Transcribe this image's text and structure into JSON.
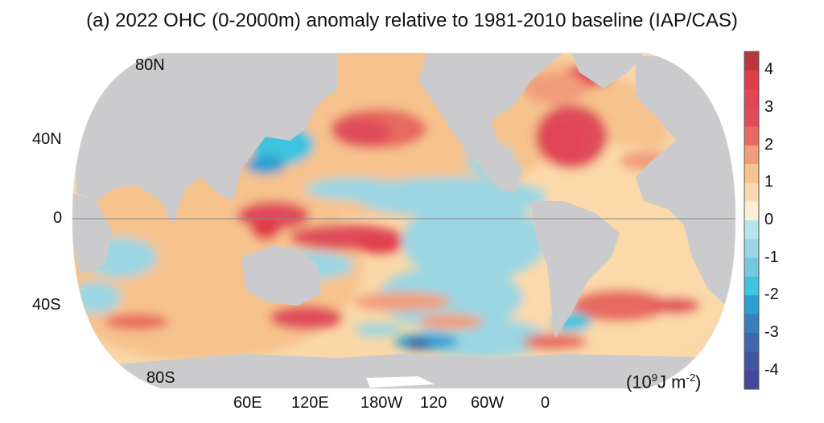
{
  "title": "(a) 2022 OHC (0-2000m) anomaly relative to 1981-2010 baseline (IAP/CAS)",
  "lat_labels": [
    "80N",
    "40N",
    "0",
    "40S",
    "80S"
  ],
  "lon_labels": [
    "60E",
    "120E",
    "180W",
    "120",
    "60W",
    "0"
  ],
  "units": {
    "base": "(10",
    "exp": "9",
    "mid": "J m",
    "exp2": "-2",
    "end": ")"
  },
  "chart_data": {
    "type": "heatmap",
    "title": "(a) 2022 OHC (0-2000m) anomaly relative to 1981-2010 baseline (IAP/CAS)",
    "projection": "Robinson",
    "colorbar": {
      "range": [
        -4.5,
        4.5
      ],
      "ticks": [
        "4",
        "3",
        "2",
        "1",
        "0",
        "-1",
        "-2",
        "-3",
        "-4"
      ],
      "tick_values": [
        4,
        3,
        2,
        1,
        0,
        -1,
        -2,
        -3,
        -4
      ],
      "levels_top_to_bottom": [
        "#b8373e",
        "#e23b4a",
        "#e24556",
        "#e04b5a",
        "#e8695f",
        "#f19d7a",
        "#f6c28e",
        "#fbd9aa",
        "#fcefd8",
        "#b5e3ef",
        "#9bd6e2",
        "#74c9dd",
        "#3fc3e0",
        "#2b9fd1",
        "#3a7fba",
        "#3f68aa",
        "#41569f",
        "#44489a"
      ]
    },
    "land_color": "#cbcbcd"
  }
}
